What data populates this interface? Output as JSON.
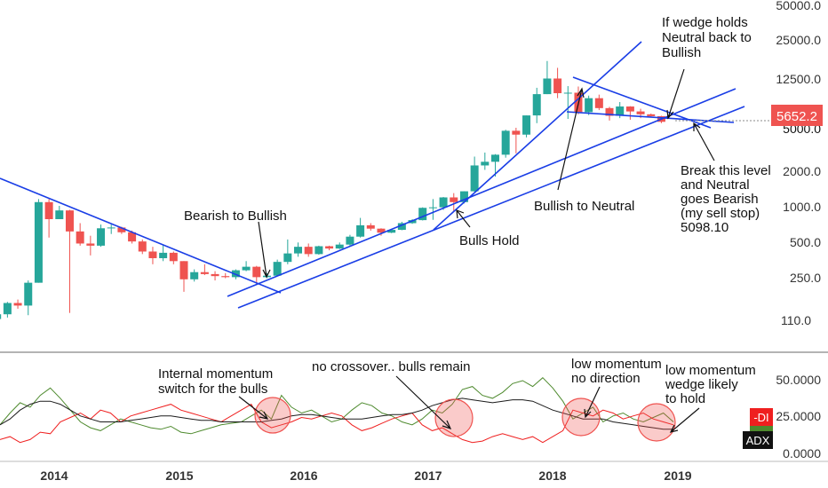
{
  "chart_data": [
    {
      "type": "candlestick",
      "scale": "log",
      "x_ticks": [
        "2014",
        "2015",
        "2016",
        "2017",
        "2018",
        "2019"
      ],
      "y_ticks": [
        "50000.0",
        "25000.0",
        "12500.0",
        "5000.0",
        "2000.0",
        "1000.0",
        "500.0",
        "250.0",
        "110.0"
      ],
      "last_price": "5652.2",
      "colors": {
        "up": "#26a69a",
        "down": "#ef5350",
        "trendline": "#1a3ee6",
        "price_tag": "#ef5350"
      },
      "ohlc": [
        {
          "date": "2013-07",
          "o": 97,
          "h": 108,
          "l": 66,
          "c": 107
        },
        {
          "date": "2013-08",
          "o": 107,
          "h": 138,
          "l": 100,
          "c": 135
        },
        {
          "date": "2013-09",
          "o": 135,
          "h": 145,
          "l": 120,
          "c": 128
        },
        {
          "date": "2013-10",
          "o": 128,
          "h": 215,
          "l": 105,
          "c": 205
        },
        {
          "date": "2013-11",
          "o": 205,
          "h": 1150,
          "l": 205,
          "c": 1080
        },
        {
          "date": "2013-12",
          "o": 1080,
          "h": 1150,
          "l": 520,
          "c": 760
        },
        {
          "date": "2014-01",
          "o": 760,
          "h": 1000,
          "l": 760,
          "c": 910
        },
        {
          "date": "2014-02",
          "o": 910,
          "h": 920,
          "l": 110,
          "c": 590
        },
        {
          "date": "2014-03",
          "o": 590,
          "h": 700,
          "l": 440,
          "c": 460
        },
        {
          "date": "2014-04",
          "o": 460,
          "h": 540,
          "l": 360,
          "c": 440
        },
        {
          "date": "2014-05",
          "o": 440,
          "h": 680,
          "l": 430,
          "c": 630
        },
        {
          "date": "2014-06",
          "o": 630,
          "h": 680,
          "l": 560,
          "c": 640
        },
        {
          "date": "2014-07",
          "o": 640,
          "h": 650,
          "l": 560,
          "c": 580
        },
        {
          "date": "2014-08",
          "o": 580,
          "h": 600,
          "l": 460,
          "c": 480
        },
        {
          "date": "2014-09",
          "o": 480,
          "h": 500,
          "l": 370,
          "c": 390
        },
        {
          "date": "2014-10",
          "o": 390,
          "h": 430,
          "l": 300,
          "c": 340
        },
        {
          "date": "2014-11",
          "o": 340,
          "h": 450,
          "l": 320,
          "c": 380
        },
        {
          "date": "2014-12",
          "o": 380,
          "h": 390,
          "l": 300,
          "c": 320
        },
        {
          "date": "2015-01",
          "o": 320,
          "h": 320,
          "l": 170,
          "c": 220
        },
        {
          "date": "2015-02",
          "o": 220,
          "h": 270,
          "l": 210,
          "c": 255
        },
        {
          "date": "2015-03",
          "o": 255,
          "h": 300,
          "l": 240,
          "c": 245
        },
        {
          "date": "2015-04",
          "o": 245,
          "h": 260,
          "l": 215,
          "c": 235
        },
        {
          "date": "2015-05",
          "o": 235,
          "h": 250,
          "l": 225,
          "c": 230
        },
        {
          "date": "2015-06",
          "o": 230,
          "h": 270,
          "l": 220,
          "c": 265
        },
        {
          "date": "2015-07",
          "o": 265,
          "h": 320,
          "l": 260,
          "c": 285
        },
        {
          "date": "2015-08",
          "o": 285,
          "h": 290,
          "l": 200,
          "c": 230
        },
        {
          "date": "2015-09",
          "o": 230,
          "h": 250,
          "l": 225,
          "c": 237
        },
        {
          "date": "2015-10",
          "o": 237,
          "h": 330,
          "l": 235,
          "c": 315
        },
        {
          "date": "2015-11",
          "o": 315,
          "h": 500,
          "l": 300,
          "c": 375
        },
        {
          "date": "2015-12",
          "o": 375,
          "h": 470,
          "l": 350,
          "c": 430
        },
        {
          "date": "2016-01",
          "o": 430,
          "h": 460,
          "l": 350,
          "c": 370
        },
        {
          "date": "2016-02",
          "o": 370,
          "h": 440,
          "l": 365,
          "c": 435
        },
        {
          "date": "2016-03",
          "o": 435,
          "h": 440,
          "l": 400,
          "c": 415
        },
        {
          "date": "2016-04",
          "o": 415,
          "h": 470,
          "l": 410,
          "c": 450
        },
        {
          "date": "2016-05",
          "o": 450,
          "h": 550,
          "l": 440,
          "c": 530
        },
        {
          "date": "2016-06",
          "o": 530,
          "h": 780,
          "l": 520,
          "c": 670
        },
        {
          "date": "2016-07",
          "o": 670,
          "h": 700,
          "l": 600,
          "c": 625
        },
        {
          "date": "2016-08",
          "o": 625,
          "h": 630,
          "l": 540,
          "c": 575
        },
        {
          "date": "2016-09",
          "o": 575,
          "h": 620,
          "l": 570,
          "c": 610
        },
        {
          "date": "2016-10",
          "o": 610,
          "h": 720,
          "l": 605,
          "c": 700
        },
        {
          "date": "2016-11",
          "o": 700,
          "h": 760,
          "l": 690,
          "c": 745
        },
        {
          "date": "2016-12",
          "o": 745,
          "h": 970,
          "l": 740,
          "c": 960
        },
        {
          "date": "2017-01",
          "o": 960,
          "h": 1150,
          "l": 750,
          "c": 970
        },
        {
          "date": "2017-02",
          "o": 970,
          "h": 1200,
          "l": 920,
          "c": 1190
        },
        {
          "date": "2017-03",
          "o": 1190,
          "h": 1300,
          "l": 890,
          "c": 1080
        },
        {
          "date": "2017-04",
          "o": 1080,
          "h": 1350,
          "l": 1050,
          "c": 1350
        },
        {
          "date": "2017-05",
          "o": 1350,
          "h": 2760,
          "l": 1340,
          "c": 2300
        },
        {
          "date": "2017-06",
          "o": 2300,
          "h": 3000,
          "l": 2100,
          "c": 2480
        },
        {
          "date": "2017-07",
          "o": 2480,
          "h": 2900,
          "l": 1830,
          "c": 2870
        },
        {
          "date": "2017-08",
          "o": 2870,
          "h": 4800,
          "l": 2700,
          "c": 4700
        },
        {
          "date": "2017-09",
          "o": 4700,
          "h": 5000,
          "l": 2950,
          "c": 4340
        },
        {
          "date": "2017-10",
          "o": 4340,
          "h": 6450,
          "l": 4100,
          "c": 6450
        },
        {
          "date": "2017-11",
          "o": 6450,
          "h": 11400,
          "l": 5500,
          "c": 10000
        },
        {
          "date": "2017-12",
          "o": 10000,
          "h": 19800,
          "l": 10000,
          "c": 13800
        },
        {
          "date": "2018-01",
          "o": 13800,
          "h": 17200,
          "l": 9200,
          "c": 10200
        },
        {
          "date": "2018-02",
          "o": 10200,
          "h": 11800,
          "l": 6000,
          "c": 10300
        },
        {
          "date": "2018-03",
          "o": 10300,
          "h": 11700,
          "l": 6600,
          "c": 6900
        },
        {
          "date": "2018-04",
          "o": 6900,
          "h": 9700,
          "l": 6500,
          "c": 9200
        },
        {
          "date": "2018-05",
          "o": 9200,
          "h": 9900,
          "l": 7200,
          "c": 7500
        },
        {
          "date": "2018-06",
          "o": 7500,
          "h": 7700,
          "l": 5800,
          "c": 6400
        },
        {
          "date": "2018-07",
          "o": 6400,
          "h": 8500,
          "l": 6100,
          "c": 7750
        },
        {
          "date": "2018-08",
          "o": 7750,
          "h": 7800,
          "l": 5900,
          "c": 7000
        },
        {
          "date": "2018-09",
          "o": 7000,
          "h": 7400,
          "l": 6100,
          "c": 6600
        },
        {
          "date": "2018-10",
          "o": 6600,
          "h": 6700,
          "l": 6200,
          "c": 6350
        },
        {
          "date": "2018-11",
          "o": 6350,
          "h": 6400,
          "l": 5500,
          "c": 5652
        }
      ]
    },
    {
      "type": "line",
      "indicator": "DMI",
      "y_ticks": [
        "50.0000",
        "25.0000",
        "0.0000"
      ],
      "colors": {
        "plus_di": "#4e8a2e",
        "minus_di": "#ef1f1f",
        "adx": "#1b1b1b"
      },
      "tags": [
        {
          "text": "-DI",
          "color": "#ef1f1f"
        },
        {
          "text": "ADX",
          "color": "#111111"
        }
      ],
      "series": [
        {
          "key": "plus_di",
          "values": [
            20,
            28,
            35,
            32,
            40,
            45,
            38,
            30,
            22,
            18,
            16,
            20,
            24,
            22,
            20,
            18,
            17,
            19,
            15,
            14,
            16,
            18,
            20,
            21,
            22,
            26,
            30,
            24,
            40,
            32,
            28,
            30,
            26,
            22,
            24,
            30,
            35,
            33,
            28,
            26,
            22,
            20,
            24,
            30,
            28,
            34,
            44,
            46,
            40,
            38,
            42,
            48,
            50,
            46,
            52,
            45,
            36,
            24,
            28,
            32,
            22,
            26,
            28,
            24,
            22,
            25,
            28,
            22
          ]
        },
        {
          "key": "minus_di",
          "values": [
            10,
            12,
            8,
            10,
            15,
            14,
            22,
            25,
            28,
            24,
            30,
            28,
            22,
            26,
            28,
            30,
            32,
            34,
            30,
            28,
            26,
            24,
            22,
            26,
            30,
            34,
            22,
            18,
            20,
            22,
            25,
            24,
            26,
            28,
            26,
            20,
            16,
            18,
            21,
            24,
            26,
            28,
            20,
            16,
            18,
            14,
            10,
            8,
            9,
            12,
            14,
            12,
            10,
            12,
            8,
            12,
            16,
            30,
            28,
            26,
            30,
            28,
            24,
            26,
            28,
            24,
            22,
            20
          ]
        },
        {
          "key": "adx",
          "values": [
            20,
            24,
            30,
            34,
            36,
            36,
            34,
            30,
            26,
            24,
            22,
            22,
            22,
            23,
            24,
            25,
            26,
            26,
            25,
            24,
            23,
            23,
            22,
            22,
            22,
            22,
            22,
            23,
            24,
            26,
            27,
            27,
            26,
            25,
            24,
            24,
            24,
            25,
            26,
            27,
            27,
            28,
            30,
            33,
            35,
            37,
            38,
            37,
            36,
            35,
            36,
            37,
            37,
            36,
            33,
            30,
            28,
            26,
            24,
            24,
            24,
            22,
            21,
            20,
            19,
            18,
            17,
            17
          ]
        }
      ]
    }
  ],
  "annotations": [
    {
      "id": "bearish-to-bullish",
      "lines": [
        "Bearish to Bullish"
      ]
    },
    {
      "id": "bulls-hold",
      "lines": [
        "Bulls Hold"
      ]
    },
    {
      "id": "bullish-to-neutral",
      "lines": [
        "Bullish to Neutral"
      ]
    },
    {
      "id": "wedge-holds",
      "lines": [
        "If wedge holds",
        "Neutral back to",
        "Bullish"
      ]
    },
    {
      "id": "break-level",
      "lines": [
        "Break this level",
        "and Neutral",
        "goes Bearish",
        "(my sell stop)",
        "5098.10"
      ]
    },
    {
      "id": "internal-momentum",
      "lines": [
        "Internal momentum",
        "switch for the bulls"
      ]
    },
    {
      "id": "no-crossover",
      "lines": [
        "no crossover.. bulls remain"
      ]
    },
    {
      "id": "low-momentum-1",
      "lines": [
        "low momentum",
        "no direction"
      ]
    },
    {
      "id": "low-momentum-2",
      "lines": [
        "low momentum",
        "wedge likely",
        "to hold"
      ]
    }
  ]
}
